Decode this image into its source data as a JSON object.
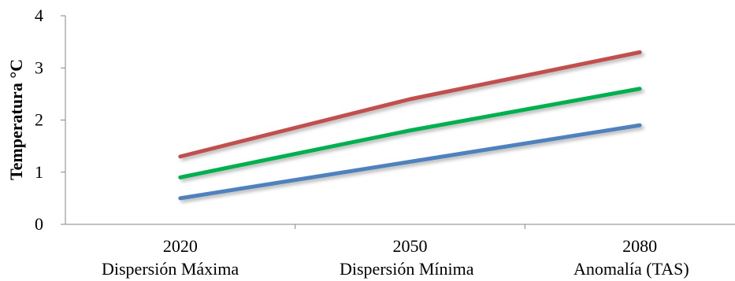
{
  "chart_data": {
    "type": "line",
    "categories": [
      "2020",
      "2050",
      "2080"
    ],
    "ylabel": "Temperatura °C",
    "ylim": [
      0,
      4
    ],
    "yticks": [
      "0",
      "1",
      "2",
      "3",
      "4"
    ],
    "grid": false,
    "legend_position": "bottom",
    "series": [
      {
        "name": "Dispersión Máxima",
        "values": [
          1.3,
          2.4,
          3.3
        ],
        "color": "#c0504d"
      },
      {
        "name": "Dispersión Mínima",
        "values": [
          0.5,
          1.2,
          1.9
        ],
        "color": "#4f81bd"
      },
      {
        "name": "Anomalía (TAS)",
        "values": [
          0.9,
          1.8,
          2.6
        ],
        "color": "#00b050"
      }
    ]
  }
}
